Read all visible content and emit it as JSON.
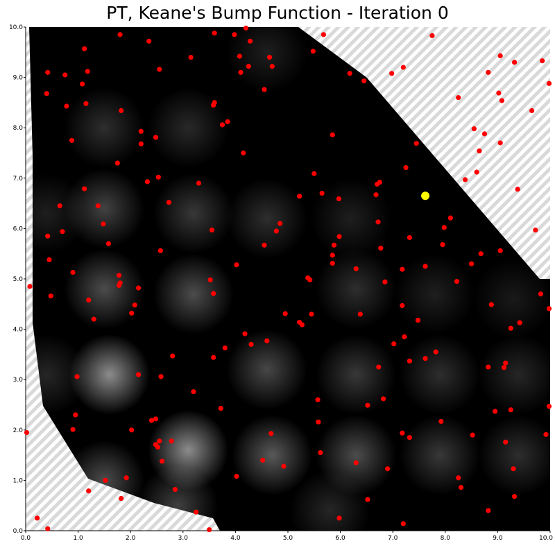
{
  "chart_data": {
    "type": "scatter",
    "title": "PT, Keane's Bump Function - Iteration 0",
    "xlabel": "",
    "ylabel": "",
    "xlim": [
      0,
      10
    ],
    "ylim": [
      0,
      10
    ],
    "x_ticks": [
      "0.0",
      "1.0",
      "2.0",
      "3.0",
      "4.0",
      "5.0",
      "6.0",
      "7.0",
      "8.0",
      "9.0",
      "10.0"
    ],
    "y_ticks": [
      "0.0",
      "1.0",
      "2.0",
      "3.0",
      "4.0",
      "5.0",
      "6.0",
      "7.0",
      "8.0",
      "9.0",
      "10.0"
    ],
    "grid": false,
    "background": "heatmap of Keane's bump function (black to white), hatched infeasible region",
    "colors": {
      "points": "#ff0000",
      "best": "#ffff00",
      "heat_low": "#000000",
      "heat_high": "#e8e8e8",
      "hatch": "#d9d9d9"
    },
    "best_point": {
      "x": 7.62,
      "y": 6.65
    },
    "points": [
      [
        1.8,
        9.85
      ],
      [
        2.35,
        9.72
      ],
      [
        3.15,
        9.4
      ],
      [
        3.6,
        9.88
      ],
      [
        3.98,
        9.85
      ],
      [
        4.2,
        9.98
      ],
      [
        4.28,
        9.72
      ],
      [
        4.08,
        9.42
      ],
      [
        4.25,
        9.22
      ],
      [
        4.1,
        9.1
      ],
      [
        4.65,
        9.4
      ],
      [
        4.7,
        9.22
      ],
      [
        4.55,
        8.76
      ],
      [
        5.48,
        9.52
      ],
      [
        5.68,
        9.85
      ],
      [
        0.42,
        9.1
      ],
      [
        0.75,
        9.05
      ],
      [
        1.18,
        9.12
      ],
      [
        1.08,
        8.87
      ],
      [
        0.4,
        8.68
      ],
      [
        1.12,
        9.57
      ],
      [
        0.78,
        8.43
      ],
      [
        1.15,
        8.48
      ],
      [
        2.55,
        9.16
      ],
      [
        3.6,
        8.5
      ],
      [
        3.58,
        8.45
      ],
      [
        1.82,
        8.34
      ],
      [
        0.88,
        7.75
      ],
      [
        2.2,
        7.93
      ],
      [
        2.48,
        7.81
      ],
      [
        2.2,
        7.68
      ],
      [
        3.75,
        8.06
      ],
      [
        3.85,
        8.12
      ],
      [
        4.15,
        7.5
      ],
      [
        1.75,
        7.3
      ],
      [
        2.53,
        7.02
      ],
      [
        2.32,
        6.93
      ],
      [
        3.3,
        6.9
      ],
      [
        1.12,
        6.79
      ],
      [
        0.65,
        6.45
      ],
      [
        1.38,
        6.45
      ],
      [
        2.73,
        6.52
      ],
      [
        5.22,
        6.64
      ],
      [
        5.5,
        7.09
      ],
      [
        5.65,
        6.7
      ],
      [
        5.85,
        7.86
      ],
      [
        5.97,
        6.59
      ],
      [
        6.18,
        9.08
      ],
      [
        6.45,
        8.93
      ],
      [
        6.98,
        9.08
      ],
      [
        7.2,
        9.2
      ],
      [
        7.45,
        7.69
      ],
      [
        7.75,
        9.83
      ],
      [
        7.25,
        7.21
      ],
      [
        6.7,
        6.88
      ],
      [
        6.75,
        6.92
      ],
      [
        6.68,
        6.67
      ],
      [
        0.42,
        5.85
      ],
      [
        0.7,
        5.94
      ],
      [
        1.48,
        6.09
      ],
      [
        1.58,
        5.7
      ],
      [
        2.57,
        5.56
      ],
      [
        3.55,
        5.97
      ],
      [
        4.85,
        6.1
      ],
      [
        4.78,
        5.95
      ],
      [
        4.55,
        5.67
      ],
      [
        5.88,
        5.67
      ],
      [
        5.98,
        5.84
      ],
      [
        5.85,
        5.47
      ],
      [
        5.85,
        5.31
      ],
      [
        6.72,
        6.13
      ],
      [
        6.77,
        5.61
      ],
      [
        7.32,
        5.82
      ],
      [
        8.1,
        6.21
      ],
      [
        7.98,
        6.02
      ],
      [
        7.95,
        5.68
      ],
      [
        8.68,
        5.5
      ],
      [
        8.5,
        5.3
      ],
      [
        9.05,
        5.56
      ],
      [
        9.72,
        5.97
      ],
      [
        9.38,
        6.78
      ],
      [
        8.38,
        6.97
      ],
      [
        8.6,
        7.12
      ],
      [
        8.65,
        7.54
      ],
      [
        8.75,
        7.88
      ],
      [
        8.55,
        7.98
      ],
      [
        9.05,
        7.7
      ],
      [
        8.25,
        8.6
      ],
      [
        9.08,
        8.54
      ],
      [
        9.02,
        8.69
      ],
      [
        8.82,
        9.1
      ],
      [
        9.05,
        9.43
      ],
      [
        9.32,
        9.3
      ],
      [
        9.85,
        9.33
      ],
      [
        9.98,
        8.88
      ],
      [
        9.65,
        8.34
      ],
      [
        0.08,
        4.85
      ],
      [
        0.45,
        5.38
      ],
      [
        0.48,
        4.66
      ],
      [
        0.9,
        5.13
      ],
      [
        1.2,
        4.58
      ],
      [
        1.3,
        4.2
      ],
      [
        1.78,
        5.07
      ],
      [
        1.78,
        4.87
      ],
      [
        1.8,
        4.92
      ],
      [
        2.15,
        4.82
      ],
      [
        2.08,
        4.48
      ],
      [
        2.02,
        4.32
      ],
      [
        3.52,
        4.98
      ],
      [
        3.58,
        4.71
      ],
      [
        4.02,
        5.28
      ],
      [
        5.38,
        5.02
      ],
      [
        5.42,
        4.98
      ],
      [
        4.95,
        4.31
      ],
      [
        5.45,
        4.3
      ],
      [
        5.22,
        4.14
      ],
      [
        5.27,
        4.09
      ],
      [
        6.3,
        5.2
      ],
      [
        6.38,
        4.3
      ],
      [
        6.85,
        4.94
      ],
      [
        7.18,
        5.19
      ],
      [
        7.62,
        5.25
      ],
      [
        8.22,
        4.95
      ],
      [
        7.18,
        4.47
      ],
      [
        7.48,
        4.18
      ],
      [
        7.22,
        3.85
      ],
      [
        7.02,
        3.71
      ],
      [
        8.88,
        4.49
      ],
      [
        9.42,
        4.13
      ],
      [
        9.25,
        4.02
      ],
      [
        9.82,
        4.7
      ],
      [
        9.98,
        4.41
      ],
      [
        3.8,
        3.63
      ],
      [
        4.18,
        3.91
      ],
      [
        4.3,
        3.7
      ],
      [
        4.6,
        3.77
      ],
      [
        3.58,
        3.44
      ],
      [
        2.8,
        3.47
      ],
      [
        6.73,
        3.25
      ],
      [
        7.32,
        3.37
      ],
      [
        7.62,
        3.42
      ],
      [
        7.82,
        3.55
      ],
      [
        8.82,
        3.25
      ],
      [
        9.15,
        3.33
      ],
      [
        9.12,
        3.24
      ],
      [
        0.98,
        3.06
      ],
      [
        2.15,
        3.1
      ],
      [
        2.58,
        3.06
      ],
      [
        3.2,
        2.76
      ],
      [
        3.72,
        2.43
      ],
      [
        5.57,
        2.6
      ],
      [
        6.52,
        2.49
      ],
      [
        6.82,
        2.62
      ],
      [
        9.25,
        2.4
      ],
      [
        8.95,
        2.37
      ],
      [
        9.98,
        2.47
      ],
      [
        0.95,
        2.3
      ],
      [
        0.9,
        2.01
      ],
      [
        2.4,
        2.19
      ],
      [
        2.48,
        2.22
      ],
      [
        2.02,
        2.0
      ],
      [
        4.68,
        1.93
      ],
      [
        5.58,
        2.16
      ],
      [
        7.18,
        1.94
      ],
      [
        7.32,
        1.85
      ],
      [
        7.92,
        2.17
      ],
      [
        8.52,
        1.9
      ],
      [
        9.15,
        1.76
      ],
      [
        9.92,
        1.91
      ],
      [
        0.02,
        1.95
      ],
      [
        2.48,
        1.71
      ],
      [
        2.52,
        1.66
      ],
      [
        2.55,
        1.78
      ],
      [
        2.78,
        1.78
      ],
      [
        2.6,
        1.38
      ],
      [
        4.52,
        1.4
      ],
      [
        4.92,
        1.28
      ],
      [
        5.62,
        1.55
      ],
      [
        6.3,
        1.35
      ],
      [
        6.9,
        1.23
      ],
      [
        9.3,
        1.23
      ],
      [
        1.92,
        1.05
      ],
      [
        1.52,
        1.0
      ],
      [
        4.02,
        1.08
      ],
      [
        8.25,
        1.05
      ],
      [
        8.3,
        0.86
      ],
      [
        8.82,
        0.4
      ],
      [
        9.32,
        0.68
      ],
      [
        1.2,
        0.79
      ],
      [
        1.82,
        0.64
      ],
      [
        2.85,
        0.82
      ],
      [
        3.25,
        0.37
      ],
      [
        6.52,
        0.62
      ],
      [
        5.98,
        0.25
      ],
      [
        7.2,
        0.14
      ],
      [
        0.22,
        0.25
      ],
      [
        0.42,
        0.04
      ],
      [
        3.5,
        0.02
      ]
    ]
  }
}
